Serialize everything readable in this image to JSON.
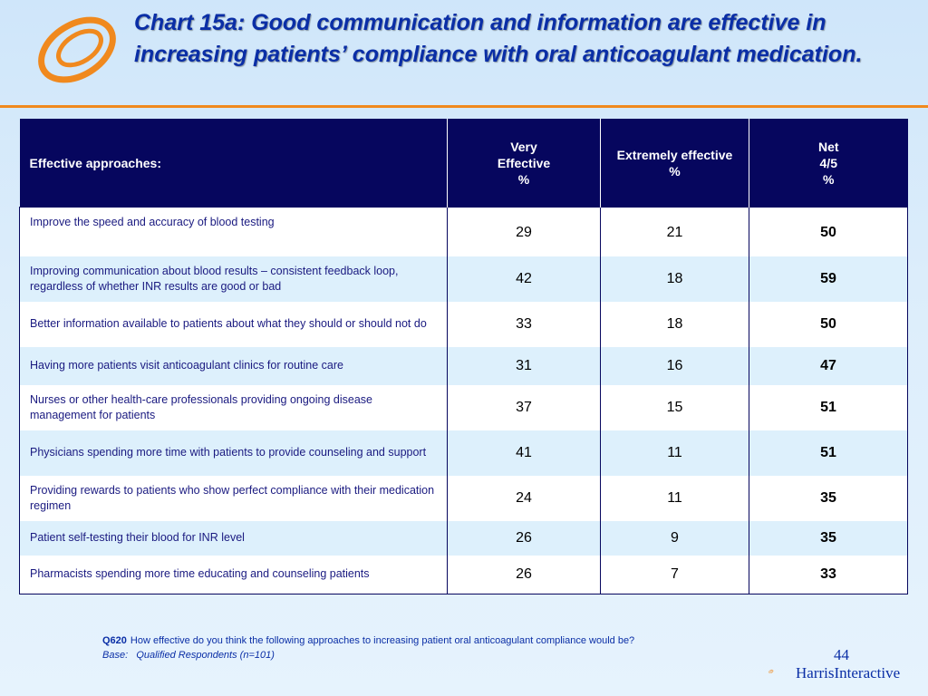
{
  "title": "Chart 15a: Good communication and information are effective in increasing patients’ compliance with oral anticoagulant medication.",
  "chart_data": {
    "type": "table",
    "title": "Chart 15a: Good communication and information are effective in increasing patients’ compliance with oral anticoagulant medication.",
    "columns": [
      [
        "Effective approaches:"
      ],
      [
        "Very",
        "Effective",
        "%"
      ],
      [
        "Extremely effective",
        "%"
      ],
      [
        "Net",
        "4/5",
        "%"
      ]
    ],
    "rows": [
      {
        "label": "Improve the speed and accuracy of blood testing",
        "very": 29,
        "extremely": 21,
        "net": 50
      },
      {
        "label": "Improving communication about blood results – consistent feedback loop, regardless of whether INR results are good or bad",
        "very": 42,
        "extremely": 18,
        "net": 59
      },
      {
        "label": "Better information available to patients about what they should or should not do",
        "very": 33,
        "extremely": 18,
        "net": 50
      },
      {
        "label": "Having more patients visit anticoagulant clinics for routine care",
        "very": 31,
        "extremely": 16,
        "net": 47
      },
      {
        "label": "Nurses or other health-care professionals providing ongoing disease management for patients",
        "very": 37,
        "extremely": 15,
        "net": 51
      },
      {
        "label": "Physicians spending more time with patients to provide counseling and support",
        "very": 41,
        "extremely": 11,
        "net": 51
      },
      {
        "label": "Providing rewards to patients who show perfect compliance with their medication regimen",
        "very": 24,
        "extremely": 11,
        "net": 35
      },
      {
        "label": "Patient self-testing their blood for INR level",
        "very": 26,
        "extremely": 9,
        "net": 35
      },
      {
        "label": "Pharmacists spending more time educating and counseling patients",
        "very": 26,
        "extremely": 7,
        "net": 33
      }
    ]
  },
  "footnote": {
    "q_code": "Q620",
    "question": "How effective do you think the following approaches to increasing patient oral anticoagulant compliance would be?",
    "base_label": "Base:",
    "base_text": "Qualified Respondents (n=101)"
  },
  "page_number": "44",
  "brand": {
    "name_part1": "Harris",
    "name_part2": "Interactive"
  },
  "colors": {
    "header_bg": "#06065e",
    "alt_row_bg": "#ddf0fc",
    "title_color": "#0a2ea6",
    "accent_orange": "#f0891e"
  },
  "icons": {
    "logo": "harris-interactive-ring-logo-icon"
  }
}
